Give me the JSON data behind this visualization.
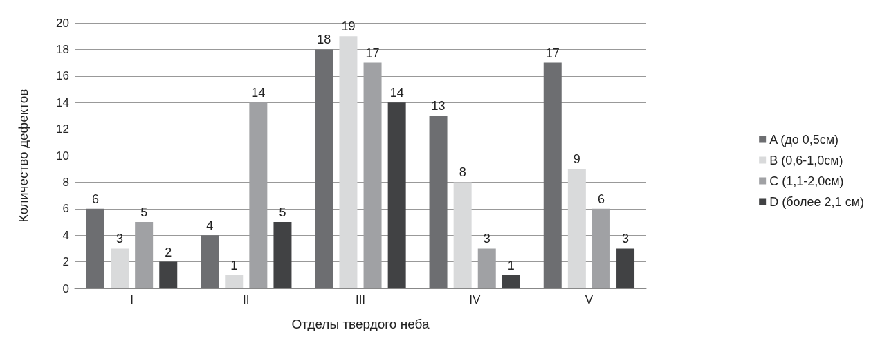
{
  "chart_data": {
    "type": "bar",
    "xlabel": "Отделы твердого неба",
    "ylabel": "Количество дефектов",
    "categories": [
      "I",
      "II",
      "III",
      "IV",
      "V"
    ],
    "series": [
      {
        "name": "A (до 0,5см)",
        "color": "#6d6e71",
        "values": [
          6,
          4,
          18,
          13,
          17
        ]
      },
      {
        "name": "B (0,6-1,0см)",
        "color": "#d9dadb",
        "values": [
          3,
          1,
          19,
          8,
          9
        ]
      },
      {
        "name": "C (1,1-2,0см)",
        "color": "#a0a1a4",
        "values": [
          5,
          14,
          17,
          3,
          6
        ]
      },
      {
        "name": "D (более 2,1 см)",
        "color": "#414244",
        "values": [
          2,
          5,
          14,
          1,
          3
        ]
      }
    ],
    "ylim": [
      0,
      20
    ],
    "yticks": [
      0,
      2,
      4,
      6,
      8,
      10,
      12,
      14,
      16,
      18,
      20
    ],
    "grid": "y",
    "legend": "right",
    "data_labels": true
  }
}
